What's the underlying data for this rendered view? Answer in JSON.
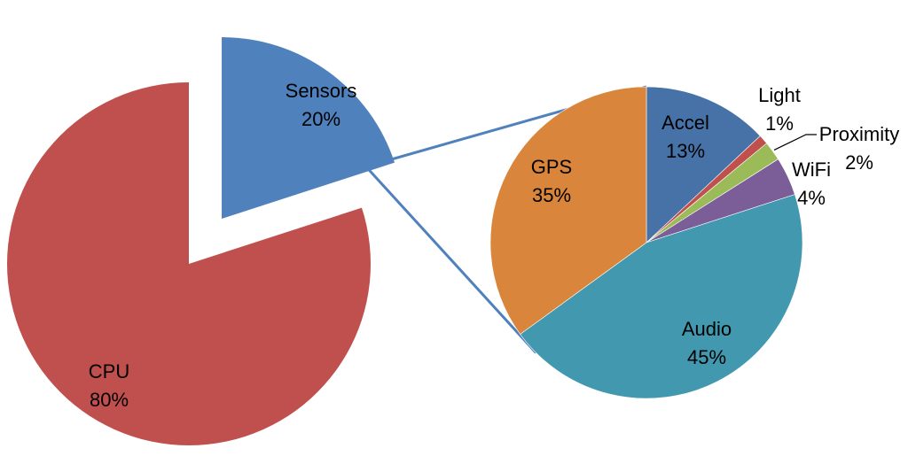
{
  "chart_data": [
    {
      "type": "pie",
      "categories": [
        "Sensors",
        "CPU"
      ],
      "values": [
        20,
        80
      ],
      "value_labels": [
        "20%",
        "80%"
      ],
      "colors": [
        "#4f81bd",
        "#c0504d"
      ],
      "exploded": "Sensors"
    },
    {
      "type": "pie",
      "categories": [
        "Accel",
        "Light",
        "Proximity",
        "WiFi",
        "Audio",
        "GPS"
      ],
      "values": [
        13,
        1,
        2,
        4,
        45,
        35
      ],
      "value_labels": [
        "13%",
        "1%",
        "2%",
        "4%",
        "45%",
        "35%"
      ],
      "colors": [
        "#4672a8",
        "#c0504d",
        "#9bbb59",
        "#7b5e97",
        "#4198af",
        "#d9853b"
      ],
      "expands": "Sensors"
    }
  ]
}
